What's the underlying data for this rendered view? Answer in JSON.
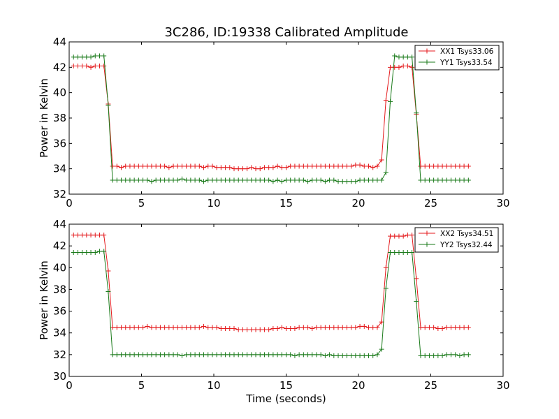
{
  "title": "3C286, ID:19338 Calibrated Amplitude",
  "chart_data": [
    {
      "type": "line",
      "title": "3C286, ID:19338 Calibrated Amplitude",
      "xlabel": "",
      "ylabel": "Power in Kelvin",
      "xlim": [
        0,
        30
      ],
      "ylim": [
        32,
        44
      ],
      "xticks": [
        0,
        5,
        10,
        15,
        20,
        25,
        30
      ],
      "yticks": [
        32,
        34,
        36,
        38,
        40,
        42,
        44
      ],
      "grid": false,
      "legend_position": "top-right",
      "x": [
        0.3,
        0.6,
        0.9,
        1.2,
        1.5,
        1.8,
        2.1,
        2.4,
        2.7,
        3.0,
        3.3,
        3.6,
        3.9,
        4.2,
        4.5,
        4.8,
        5.1,
        5.4,
        5.7,
        6.0,
        6.3,
        6.6,
        6.9,
        7.2,
        7.5,
        7.8,
        8.1,
        8.4,
        8.7,
        9.0,
        9.3,
        9.6,
        9.9,
        10.2,
        10.5,
        10.8,
        11.1,
        11.4,
        11.7,
        12.0,
        12.3,
        12.6,
        12.9,
        13.2,
        13.5,
        13.8,
        14.1,
        14.4,
        14.7,
        15.0,
        15.3,
        15.6,
        15.9,
        16.2,
        16.5,
        16.8,
        17.1,
        17.4,
        17.7,
        18.0,
        18.3,
        18.6,
        18.9,
        19.2,
        19.5,
        19.8,
        20.1,
        20.4,
        20.7,
        21.0,
        21.3,
        21.6,
        21.9,
        22.2,
        22.5,
        22.8,
        23.1,
        23.4,
        23.7,
        24.0,
        24.3,
        24.6,
        24.9,
        25.2,
        25.5,
        25.8,
        26.1,
        26.4,
        26.7,
        27.0,
        27.3,
        27.6
      ],
      "series": [
        {
          "name": "XX1 Tsys33.06",
          "color": "#e41a1c",
          "values": [
            42.1,
            42.1,
            42.1,
            42.1,
            42.0,
            42.1,
            42.1,
            42.1,
            39.1,
            34.2,
            34.2,
            34.1,
            34.2,
            34.2,
            34.2,
            34.2,
            34.2,
            34.2,
            34.2,
            34.2,
            34.2,
            34.2,
            34.1,
            34.2,
            34.2,
            34.2,
            34.2,
            34.2,
            34.2,
            34.2,
            34.1,
            34.2,
            34.2,
            34.1,
            34.1,
            34.1,
            34.1,
            34.0,
            34.0,
            34.0,
            34.0,
            34.1,
            34.0,
            34.0,
            34.1,
            34.1,
            34.1,
            34.2,
            34.1,
            34.1,
            34.2,
            34.2,
            34.2,
            34.2,
            34.2,
            34.2,
            34.2,
            34.2,
            34.2,
            34.2,
            34.2,
            34.2,
            34.2,
            34.2,
            34.2,
            34.3,
            34.3,
            34.2,
            34.2,
            34.1,
            34.2,
            34.7,
            39.4,
            42.0,
            42.0,
            42.0,
            42.1,
            42.1,
            42.0,
            38.3,
            34.2,
            34.2,
            34.2,
            34.2,
            34.2,
            34.2,
            34.2,
            34.2,
            34.2,
            34.2,
            34.2,
            34.2
          ]
        },
        {
          "name": "YY1 Tsys33.54",
          "color": "#1a7a1a",
          "values": [
            42.8,
            42.8,
            42.8,
            42.8,
            42.8,
            42.9,
            42.9,
            42.9,
            39.0,
            33.1,
            33.1,
            33.1,
            33.1,
            33.1,
            33.1,
            33.1,
            33.1,
            33.1,
            33.0,
            33.1,
            33.1,
            33.1,
            33.1,
            33.1,
            33.1,
            33.2,
            33.1,
            33.1,
            33.1,
            33.1,
            33.0,
            33.1,
            33.1,
            33.1,
            33.1,
            33.1,
            33.1,
            33.1,
            33.1,
            33.1,
            33.1,
            33.1,
            33.1,
            33.1,
            33.1,
            33.1,
            33.0,
            33.1,
            33.0,
            33.1,
            33.1,
            33.1,
            33.1,
            33.1,
            33.0,
            33.1,
            33.1,
            33.1,
            33.0,
            33.1,
            33.1,
            33.0,
            33.0,
            33.0,
            33.0,
            33.0,
            33.1,
            33.1,
            33.1,
            33.1,
            33.1,
            33.1,
            33.7,
            39.3,
            42.9,
            42.8,
            42.8,
            42.8,
            42.8,
            38.4,
            33.1,
            33.1,
            33.1,
            33.1,
            33.1,
            33.1,
            33.1,
            33.1,
            33.1,
            33.1,
            33.1,
            33.1
          ]
        }
      ]
    },
    {
      "type": "line",
      "title": "",
      "xlabel": "Time (seconds)",
      "ylabel": "Power in Kelvin",
      "xlim": [
        0,
        30
      ],
      "ylim": [
        30,
        44
      ],
      "xticks": [
        0,
        5,
        10,
        15,
        20,
        25,
        30
      ],
      "yticks": [
        30,
        32,
        34,
        36,
        38,
        40,
        42,
        44
      ],
      "grid": false,
      "legend_position": "top-right",
      "x": [
        0.3,
        0.6,
        0.9,
        1.2,
        1.5,
        1.8,
        2.1,
        2.4,
        2.7,
        3.0,
        3.3,
        3.6,
        3.9,
        4.2,
        4.5,
        4.8,
        5.1,
        5.4,
        5.7,
        6.0,
        6.3,
        6.6,
        6.9,
        7.2,
        7.5,
        7.8,
        8.1,
        8.4,
        8.7,
        9.0,
        9.3,
        9.6,
        9.9,
        10.2,
        10.5,
        10.8,
        11.1,
        11.4,
        11.7,
        12.0,
        12.3,
        12.6,
        12.9,
        13.2,
        13.5,
        13.8,
        14.1,
        14.4,
        14.7,
        15.0,
        15.3,
        15.6,
        15.9,
        16.2,
        16.5,
        16.8,
        17.1,
        17.4,
        17.7,
        18.0,
        18.3,
        18.6,
        18.9,
        19.2,
        19.5,
        19.8,
        20.1,
        20.4,
        20.7,
        21.0,
        21.3,
        21.6,
        21.9,
        22.2,
        22.5,
        22.8,
        23.1,
        23.4,
        23.7,
        24.0,
        24.3,
        24.6,
        24.9,
        25.2,
        25.5,
        25.8,
        26.1,
        26.4,
        26.7,
        27.0,
        27.3,
        27.6
      ],
      "series": [
        {
          "name": "XX2 Tsys34.51",
          "color": "#e41a1c",
          "values": [
            43.0,
            43.0,
            43.0,
            43.0,
            43.0,
            43.0,
            43.0,
            43.0,
            39.7,
            34.5,
            34.5,
            34.5,
            34.5,
            34.5,
            34.5,
            34.5,
            34.5,
            34.6,
            34.5,
            34.5,
            34.5,
            34.5,
            34.5,
            34.5,
            34.5,
            34.5,
            34.5,
            34.5,
            34.5,
            34.5,
            34.6,
            34.5,
            34.5,
            34.5,
            34.4,
            34.4,
            34.4,
            34.4,
            34.3,
            34.3,
            34.3,
            34.3,
            34.3,
            34.3,
            34.3,
            34.3,
            34.4,
            34.4,
            34.5,
            34.4,
            34.4,
            34.4,
            34.5,
            34.5,
            34.5,
            34.4,
            34.5,
            34.5,
            34.5,
            34.5,
            34.5,
            34.5,
            34.5,
            34.5,
            34.5,
            34.5,
            34.6,
            34.6,
            34.5,
            34.5,
            34.5,
            35.0,
            40.0,
            42.9,
            42.9,
            42.9,
            42.9,
            43.0,
            43.0,
            39.0,
            34.5,
            34.5,
            34.5,
            34.5,
            34.4,
            34.4,
            34.5,
            34.5,
            34.5,
            34.5,
            34.5,
            34.5
          ]
        },
        {
          "name": "YY2 Tsys32.44",
          "color": "#1a7a1a",
          "values": [
            41.4,
            41.4,
            41.4,
            41.4,
            41.4,
            41.4,
            41.5,
            41.5,
            37.8,
            32.0,
            32.0,
            32.0,
            32.0,
            32.0,
            32.0,
            32.0,
            32.0,
            32.0,
            32.0,
            32.0,
            32.0,
            32.0,
            32.0,
            32.0,
            32.0,
            31.9,
            32.0,
            32.0,
            32.0,
            32.0,
            32.0,
            32.0,
            32.0,
            32.0,
            32.0,
            32.0,
            32.0,
            32.0,
            32.0,
            32.0,
            32.0,
            32.0,
            32.0,
            32.0,
            32.0,
            32.0,
            32.0,
            32.0,
            32.0,
            32.0,
            32.0,
            31.9,
            32.0,
            32.0,
            32.0,
            32.0,
            32.0,
            32.0,
            31.9,
            32.0,
            31.9,
            31.9,
            31.9,
            31.9,
            31.9,
            31.9,
            31.9,
            31.9,
            31.9,
            31.9,
            32.0,
            32.5,
            38.1,
            41.4,
            41.4,
            41.4,
            41.4,
            41.4,
            41.4,
            36.9,
            31.9,
            31.9,
            31.9,
            31.9,
            31.9,
            31.9,
            32.0,
            32.0,
            32.0,
            31.9,
            32.0,
            32.0
          ]
        }
      ]
    }
  ]
}
